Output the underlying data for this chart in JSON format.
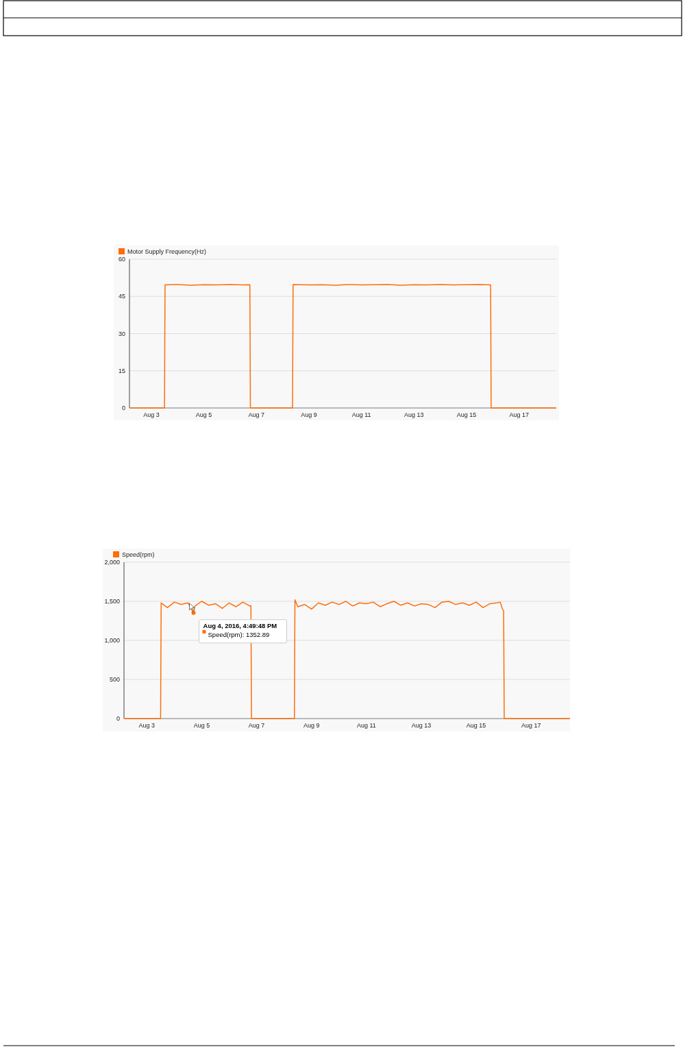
{
  "chart_data": [
    {
      "type": "line",
      "xlim": [
        "2016-08-02T04:00",
        "2016-08-18T10:00"
      ],
      "ylim": [
        0,
        60
      ],
      "yticks": [
        0,
        15,
        30,
        45,
        60
      ],
      "xticks": [
        {
          "value": "2016-08-03",
          "label": "Aug 3"
        },
        {
          "value": "2016-08-05",
          "label": "Aug 5"
        },
        {
          "value": "2016-08-07",
          "label": "Aug 7"
        },
        {
          "value": "2016-08-09",
          "label": "Aug 9"
        },
        {
          "value": "2016-08-11",
          "label": "Aug 11"
        },
        {
          "value": "2016-08-13",
          "label": "Aug 13"
        },
        {
          "value": "2016-08-15",
          "label": "Aug 15"
        },
        {
          "value": "2016-08-17",
          "label": "Aug 17"
        }
      ],
      "grid": "y",
      "legend": "top left",
      "marker": "none",
      "series": [
        {
          "name": "Motor Supply Frequency(Hz)",
          "color": "#ff6d0a",
          "x": [
            "2016-08-02T04:00",
            "2016-08-03T12:00",
            "2016-08-03T12:30",
            "2016-08-04T00:00",
            "2016-08-04T12:00",
            "2016-08-05T00:00",
            "2016-08-05T12:00",
            "2016-08-06T00:00",
            "2016-08-06T12:00",
            "2016-08-06T18:00",
            "2016-08-06T18:30",
            "2016-08-08T09:00",
            "2016-08-08T09:30",
            "2016-08-09T00:00",
            "2016-08-09T12:00",
            "2016-08-10T00:00",
            "2016-08-10T12:00",
            "2016-08-11T00:00",
            "2016-08-11T12:00",
            "2016-08-12T00:00",
            "2016-08-12T12:00",
            "2016-08-13T00:00",
            "2016-08-13T12:00",
            "2016-08-14T00:00",
            "2016-08-14T12:00",
            "2016-08-15T00:00",
            "2016-08-15T12:00",
            "2016-08-15T22:00",
            "2016-08-15T22:30",
            "2016-08-18T10:00"
          ],
          "values": [
            0,
            0,
            49.6,
            49.8,
            49.5,
            49.7,
            49.6,
            49.8,
            49.6,
            49.7,
            0,
            0,
            49.8,
            49.6,
            49.7,
            49.5,
            49.8,
            49.6,
            49.7,
            49.8,
            49.5,
            49.7,
            49.6,
            49.8,
            49.6,
            49.7,
            49.8,
            49.6,
            0,
            0
          ]
        }
      ]
    },
    {
      "type": "line",
      "xlim": [
        "2016-08-02T04:00",
        "2016-08-18T10:00"
      ],
      "ylim": [
        0,
        2000
      ],
      "yticks": [
        0,
        500,
        {
          "value": 1000,
          "label": "1,000"
        },
        {
          "value": 1500,
          "label": "1,500"
        },
        {
          "value": 2000,
          "label": "2,000"
        }
      ],
      "xticks": [
        {
          "value": "2016-08-03",
          "label": "Aug 3"
        },
        {
          "value": "2016-08-05",
          "label": "Aug 5"
        },
        {
          "value": "2016-08-07",
          "label": "Aug 7"
        },
        {
          "value": "2016-08-09",
          "label": "Aug 9"
        },
        {
          "value": "2016-08-11",
          "label": "Aug 11"
        },
        {
          "value": "2016-08-13",
          "label": "Aug 13"
        },
        {
          "value": "2016-08-15",
          "label": "Aug 15"
        },
        {
          "value": "2016-08-17",
          "label": "Aug 17"
        }
      ],
      "grid": "y",
      "legend": "top left",
      "marker": "none",
      "annotations": [
        {
          "text": "Aug 4, 2016, 4:49:48 PM",
          "x": "2016-08-04T16:49",
          "y": 1352.89
        },
        "Speed(rpm): 1352.89"
      ],
      "series": [
        {
          "name": "Speed(rpm)",
          "color": "#ff6d0a",
          "x": [
            "2016-08-02T04:00",
            "2016-08-03T12:00",
            "2016-08-03T12:30",
            "2016-08-03T18:00",
            "2016-08-04T00:00",
            "2016-08-04T06:00",
            "2016-08-04T12:00",
            "2016-08-04T16:49",
            "2016-08-04T18:00",
            "2016-08-05T00:00",
            "2016-08-05T06:00",
            "2016-08-05T12:00",
            "2016-08-05T18:00",
            "2016-08-06T00:00",
            "2016-08-06T06:00",
            "2016-08-06T12:00",
            "2016-08-06T18:00",
            "2016-08-06T19:00",
            "2016-08-06T19:30",
            "2016-08-08T09:00",
            "2016-08-08T09:30",
            "2016-08-08T12:00",
            "2016-08-08T18:00",
            "2016-08-09T00:00",
            "2016-08-09T06:00",
            "2016-08-09T12:00",
            "2016-08-09T18:00",
            "2016-08-10T00:00",
            "2016-08-10T06:00",
            "2016-08-10T12:00",
            "2016-08-10T18:00",
            "2016-08-11T00:00",
            "2016-08-11T06:00",
            "2016-08-11T12:00",
            "2016-08-11T18:00",
            "2016-08-12T00:00",
            "2016-08-12T06:00",
            "2016-08-12T12:00",
            "2016-08-12T18:00",
            "2016-08-13T00:00",
            "2016-08-13T06:00",
            "2016-08-13T12:00",
            "2016-08-13T18:00",
            "2016-08-14T00:00",
            "2016-08-14T06:00",
            "2016-08-14T12:00",
            "2016-08-14T18:00",
            "2016-08-15T00:00",
            "2016-08-15T06:00",
            "2016-08-15T12:00",
            "2016-08-15T18:00",
            "2016-08-15T21:00",
            "2016-08-15T23:00",
            "2016-08-16T00:00",
            "2016-08-16T00:30",
            "2016-08-18T10:00"
          ],
          "values": [
            0,
            0,
            1480,
            1420,
            1490,
            1460,
            1480,
            1352.89,
            1440,
            1500,
            1450,
            1470,
            1410,
            1480,
            1430,
            1490,
            1440,
            1445,
            0,
            0,
            1520,
            1430,
            1460,
            1400,
            1480,
            1450,
            1490,
            1460,
            1500,
            1440,
            1480,
            1470,
            1490,
            1430,
            1470,
            1500,
            1450,
            1480,
            1440,
            1470,
            1460,
            1420,
            1490,
            1500,
            1460,
            1480,
            1450,
            1490,
            1420,
            1470,
            1480,
            1490,
            1400,
            1380,
            0,
            0
          ]
        }
      ]
    }
  ]
}
